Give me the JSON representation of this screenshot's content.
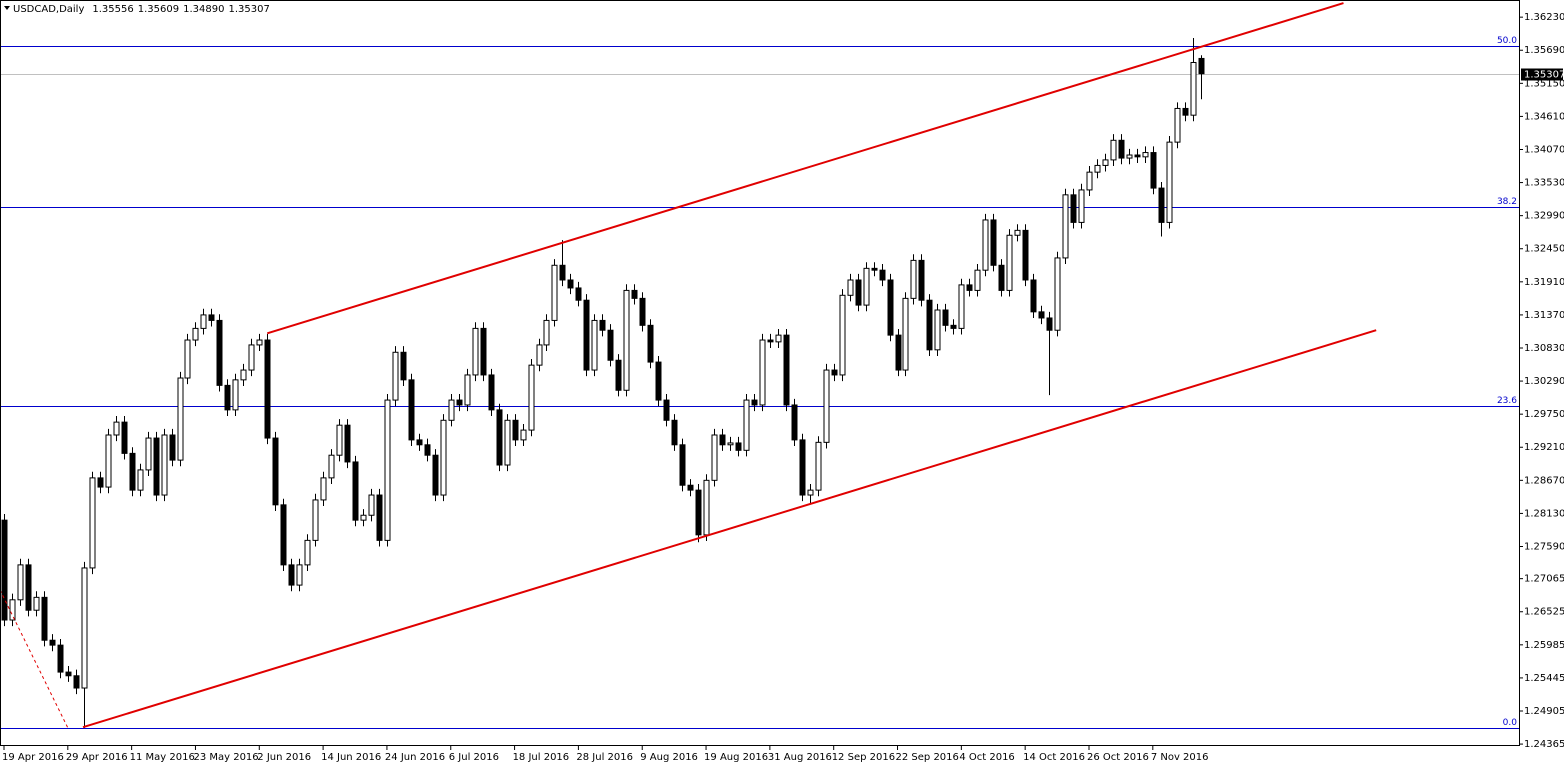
{
  "chart_data": {
    "type": "candlestick",
    "title": "USDCAD,Daily",
    "last_bar_labels": {
      "open": "1.35556",
      "high": "1.35609",
      "low": "1.34890",
      "close": "1.35307"
    },
    "categories": [
      "19 Apr 2016",
      null,
      null,
      null,
      null,
      null,
      null,
      null,
      "29 Apr 2016",
      null,
      null,
      null,
      null,
      null,
      null,
      null,
      "11 May 2016",
      null,
      null,
      null,
      null,
      null,
      null,
      null,
      "23 May 2016",
      null,
      null,
      null,
      null,
      null,
      null,
      null,
      "2 Jun 2016",
      null,
      null,
      null,
      null,
      null,
      null,
      null,
      "14 Jun 2016",
      null,
      null,
      null,
      null,
      null,
      null,
      null,
      "24 Jun 2016",
      null,
      null,
      null,
      null,
      null,
      null,
      null,
      "6 Jul 2016",
      null,
      null,
      null,
      null,
      null,
      null,
      null,
      "18 Jul 2016",
      null,
      null,
      null,
      null,
      null,
      null,
      null,
      "28 Jul 2016",
      null,
      null,
      null,
      null,
      null,
      null,
      null,
      "9 Aug 2016",
      null,
      null,
      null,
      null,
      null,
      null,
      null,
      "19 Aug 2016",
      null,
      null,
      null,
      null,
      null,
      null,
      null,
      "31 Aug 2016",
      null,
      null,
      null,
      null,
      null,
      null,
      null,
      "12 Sep 2016",
      null,
      null,
      null,
      null,
      null,
      null,
      null,
      "22 Sep 2016",
      null,
      null,
      null,
      null,
      null,
      null,
      null,
      "4 Oct 2016",
      null,
      null,
      null,
      null,
      null,
      null,
      null,
      "14 Oct 2016",
      null,
      null,
      null,
      null,
      null,
      null,
      null,
      "26 Oct 2016",
      null,
      null,
      null,
      null,
      null,
      null,
      null,
      "7 Nov 2016",
      null,
      null,
      null,
      null,
      null,
      null
    ],
    "open": [
      1.2802,
      1.2639,
      1.2672,
      1.2729,
      1.2655,
      1.2676,
      1.2606,
      1.2598,
      1.2554,
      1.2548,
      1.2528,
      1.2724,
      1.2871,
      1.2856,
      1.2941,
      1.2962,
      1.2911,
      1.2851,
      1.2884,
      1.2936,
      1.2843,
      1.2941,
      1.29,
      1.3034,
      1.3096,
      1.3115,
      1.3137,
      1.3128,
      1.3022,
      1.2982,
      1.3031,
      1.3047,
      1.3088,
      1.3096,
      1.2936,
      1.2827,
      1.2729,
      1.2696,
      1.2729,
      1.2769,
      1.2835,
      1.2871,
      1.2908,
      1.2957,
      1.2897,
      1.2802,
      1.281,
      1.2843,
      1.2769,
      1.2998,
      1.3076,
      1.3031,
      1.2933,
      1.2925,
      1.2908,
      1.2843,
      1.2965,
      1.2998,
      1.299,
      1.3039,
      1.3115,
      1.3039,
      1.2982,
      1.2892,
      1.2965,
      1.2933,
      1.2949,
      1.3055,
      1.3088,
      1.3128,
      1.3218,
      1.3194,
      1.3181,
      1.3161,
      1.3047,
      1.3128,
      1.3112,
      1.3063,
      1.3014,
      1.3177,
      1.3164,
      1.312,
      1.306,
      1.2998,
      1.2965,
      1.2925,
      1.2859,
      1.2851,
      1.2778,
      1.2867,
      1.2941,
      1.2925,
      1.2928,
      1.2916,
      1.2998,
      1.299,
      1.3096,
      1.3093,
      1.3104,
      1.299,
      1.2933,
      1.2843,
      1.2851,
      1.2929,
      1.3047,
      1.3039,
      1.3169,
      1.3194,
      1.3153,
      1.3213,
      1.321,
      1.3194,
      1.3104,
      1.3047,
      1.3164,
      1.3226,
      1.3161,
      1.308,
      1.3145,
      1.312,
      1.3115,
      1.3186,
      1.3177,
      1.321,
      1.3292,
      1.3218,
      1.3177,
      1.3267,
      1.3275,
      1.3194,
      1.3142,
      1.3132,
      1.3112,
      1.323,
      1.3333,
      1.3288,
      1.3341,
      1.337,
      1.3381,
      1.339,
      1.3422,
      1.3393,
      1.3398,
      1.3395,
      1.3402,
      1.3344,
      1.3288,
      1.3419,
      1.3474,
      1.3463,
      1.35556
    ],
    "high": [
      1.2812,
      1.2682,
      1.2739,
      1.2739,
      1.2686,
      1.2686,
      1.2616,
      1.2608,
      1.2564,
      1.2558,
      1.2734,
      1.2881,
      1.2881,
      1.2951,
      1.2972,
      1.2972,
      1.2921,
      1.2894,
      1.2946,
      1.2946,
      1.2951,
      1.2951,
      1.3044,
      1.3106,
      1.3125,
      1.3147,
      1.3147,
      1.3138,
      1.3032,
      1.3041,
      1.3057,
      1.3098,
      1.3106,
      1.3106,
      1.2946,
      1.2837,
      1.2739,
      1.2739,
      1.2779,
      1.2845,
      1.2881,
      1.2918,
      1.2967,
      1.2967,
      1.2907,
      1.282,
      1.2853,
      1.2853,
      1.3008,
      1.3086,
      1.3086,
      1.3041,
      1.2943,
      1.2935,
      1.2918,
      1.2975,
      1.3008,
      1.3008,
      1.3049,
      1.3125,
      1.3125,
      1.3049,
      1.2992,
      1.2975,
      1.2975,
      1.2959,
      1.3065,
      1.3098,
      1.3138,
      1.3228,
      1.3259,
      1.3204,
      1.3191,
      1.3171,
      1.3138,
      1.3138,
      1.3122,
      1.3073,
      1.3187,
      1.3187,
      1.3174,
      1.313,
      1.307,
      1.3008,
      1.2975,
      1.2935,
      1.2869,
      1.2861,
      1.2877,
      1.2951,
      1.2951,
      1.2938,
      1.2938,
      1.3008,
      1.3008,
      1.3106,
      1.3106,
      1.3114,
      1.3114,
      1.3,
      1.2943,
      1.2861,
      1.2939,
      1.3057,
      1.3057,
      1.3179,
      1.3204,
      1.3204,
      1.3223,
      1.3223,
      1.322,
      1.3204,
      1.3114,
      1.3174,
      1.3236,
      1.3236,
      1.3171,
      1.3155,
      1.3155,
      1.313,
      1.3196,
      1.3196,
      1.322,
      1.3302,
      1.3302,
      1.3228,
      1.3277,
      1.3285,
      1.3285,
      1.3204,
      1.3152,
      1.3142,
      1.324,
      1.3343,
      1.3343,
      1.3351,
      1.338,
      1.3391,
      1.34,
      1.3432,
      1.3432,
      1.3408,
      1.3408,
      1.3412,
      1.3412,
      1.3354,
      1.3429,
      1.3484,
      1.3484,
      1.3589,
      1.35609
    ],
    "low": [
      1.2629,
      1.2629,
      1.2662,
      1.2645,
      1.2645,
      1.2596,
      1.2588,
      1.2544,
      1.2538,
      1.2518,
      1.2463,
      1.2714,
      1.2846,
      1.2846,
      1.2931,
      1.2901,
      1.2841,
      1.2841,
      1.2874,
      1.2833,
      1.2833,
      1.289,
      1.289,
      1.3024,
      1.3086,
      1.3105,
      1.3118,
      1.3012,
      1.2972,
      1.2972,
      1.3021,
      1.3037,
      1.3078,
      1.2926,
      1.2817,
      1.2719,
      1.2686,
      1.2686,
      1.2719,
      1.2759,
      1.2825,
      1.2861,
      1.2898,
      1.2887,
      1.2792,
      1.2792,
      1.28,
      1.2759,
      1.2759,
      1.2988,
      1.3021,
      1.2923,
      1.2915,
      1.2898,
      1.2833,
      1.2833,
      1.2955,
      1.298,
      1.298,
      1.3029,
      1.3029,
      1.2972,
      1.2882,
      1.2882,
      1.2923,
      1.2923,
      1.2939,
      1.3045,
      1.3078,
      1.3118,
      1.3184,
      1.3171,
      1.3151,
      1.3037,
      1.3037,
      1.3102,
      1.3053,
      1.3004,
      1.3004,
      1.3154,
      1.311,
      1.305,
      1.2988,
      1.2955,
      1.2915,
      1.2849,
      1.2841,
      1.2766,
      1.2768,
      1.2857,
      1.2915,
      1.2915,
      1.2906,
      1.2906,
      1.298,
      1.298,
      1.3083,
      1.3083,
      1.298,
      1.2923,
      1.2833,
      1.283,
      1.2841,
      1.2919,
      1.3029,
      1.3029,
      1.3159,
      1.3143,
      1.3143,
      1.32,
      1.3184,
      1.3094,
      1.3037,
      1.3037,
      1.3154,
      1.3151,
      1.307,
      1.307,
      1.311,
      1.3105,
      1.3105,
      1.3167,
      1.3167,
      1.32,
      1.3208,
      1.3167,
      1.3167,
      1.3257,
      1.3184,
      1.3132,
      1.3122,
      1.3006,
      1.3102,
      1.322,
      1.3278,
      1.3278,
      1.3331,
      1.336,
      1.3371,
      1.338,
      1.3383,
      1.3383,
      1.3385,
      1.3385,
      1.3334,
      1.3265,
      1.3278,
      1.3409,
      1.3453,
      1.3453,
      1.3489
    ],
    "close": [
      1.2639,
      1.2672,
      1.2729,
      1.2655,
      1.2676,
      1.2606,
      1.2598,
      1.2554,
      1.2548,
      1.2528,
      1.2724,
      1.2871,
      1.2856,
      1.2941,
      1.2962,
      1.2911,
      1.2851,
      1.2884,
      1.2936,
      1.2843,
      1.2941,
      1.29,
      1.3034,
      1.3096,
      1.3115,
      1.3137,
      1.3128,
      1.3022,
      1.2982,
      1.3031,
      1.3047,
      1.3088,
      1.3096,
      1.2936,
      1.2827,
      1.2729,
      1.2696,
      1.2729,
      1.2769,
      1.2835,
      1.2871,
      1.2908,
      1.2957,
      1.2897,
      1.2802,
      1.281,
      1.2843,
      1.2769,
      1.2998,
      1.3076,
      1.3031,
      1.2933,
      1.2925,
      1.2908,
      1.2843,
      1.2965,
      1.2998,
      1.299,
      1.3039,
      1.3115,
      1.3039,
      1.2982,
      1.2892,
      1.2965,
      1.2933,
      1.2949,
      1.3055,
      1.3088,
      1.3128,
      1.3218,
      1.3194,
      1.3181,
      1.3161,
      1.3047,
      1.3128,
      1.3112,
      1.3063,
      1.3014,
      1.3177,
      1.3164,
      1.312,
      1.306,
      1.2998,
      1.2965,
      1.2925,
      1.2859,
      1.2851,
      1.2778,
      1.2867,
      1.2941,
      1.2925,
      1.2928,
      1.2916,
      1.2998,
      1.299,
      1.3096,
      1.3093,
      1.3104,
      1.299,
      1.2933,
      1.2843,
      1.2851,
      1.2929,
      1.3047,
      1.3039,
      1.3169,
      1.3194,
      1.3153,
      1.3213,
      1.321,
      1.3194,
      1.3104,
      1.3047,
      1.3164,
      1.3226,
      1.3161,
      1.308,
      1.3145,
      1.312,
      1.3115,
      1.3186,
      1.3177,
      1.321,
      1.3292,
      1.3218,
      1.3177,
      1.3267,
      1.3275,
      1.3194,
      1.3142,
      1.3132,
      1.3112,
      1.323,
      1.3333,
      1.3288,
      1.3341,
      1.337,
      1.3381,
      1.339,
      1.3422,
      1.3393,
      1.3398,
      1.3395,
      1.3402,
      1.3344,
      1.3288,
      1.3419,
      1.3474,
      1.3463,
      1.3549,
      1.35307
    ],
    "up_color": "#ffffff",
    "down_color": "#000000",
    "outline_color": "#000000",
    "xlim": [
      -0.5,
      189.9
    ],
    "ylim": [
      1.2435,
      1.3651
    ],
    "yticks": [
      {
        "value": 1.3623,
        "label": "1.36230"
      },
      {
        "value": 1.3569,
        "label": "1.35690"
      },
      {
        "value": 1.3515,
        "label": "1.35150"
      },
      {
        "value": 1.3461,
        "label": "1.34610"
      },
      {
        "value": 1.3407,
        "label": "1.34070"
      },
      {
        "value": 1.3353,
        "label": "1.33530"
      },
      {
        "value": 1.3299,
        "label": "1.32990"
      },
      {
        "value": 1.3245,
        "label": "1.32450"
      },
      {
        "value": 1.3191,
        "label": "1.31910"
      },
      {
        "value": 1.3137,
        "label": "1.31370"
      },
      {
        "value": 1.3083,
        "label": "1.30830"
      },
      {
        "value": 1.3029,
        "label": "1.30290"
      },
      {
        "value": 1.2975,
        "label": "1.29750"
      },
      {
        "value": 1.2921,
        "label": "1.29210"
      },
      {
        "value": 1.2867,
        "label": "1.28670"
      },
      {
        "value": 1.2813,
        "label": "1.28130"
      },
      {
        "value": 1.2759,
        "label": "1.27590"
      },
      {
        "value": 1.27065,
        "label": "1.27065"
      },
      {
        "value": 1.26525,
        "label": "1.26525"
      },
      {
        "value": 1.25985,
        "label": "1.25985"
      },
      {
        "value": 1.25445,
        "label": "1.25445"
      },
      {
        "value": 1.24905,
        "label": "1.24905"
      },
      {
        "value": 1.24365,
        "label": "1.24365"
      }
    ],
    "grid": false,
    "fibonacci": {
      "color": "#0000cd",
      "levels": [
        {
          "value": 0,
          "label": "0.0"
        },
        {
          "value": 23.6,
          "label": "23.6"
        },
        {
          "value": 38.2,
          "label": "38.2"
        },
        {
          "value": 50,
          "label": "50.0"
        }
      ],
      "prices": [
        1.2463,
        1.2988,
        1.3313,
        1.3576
      ]
    },
    "trendlines": [
      {
        "color": "#e00000",
        "dashed": false,
        "x": [
          33,
          167.9
        ],
        "y": [
          1.3107,
          1.3646
        ]
      },
      {
        "color": "#e00000",
        "dashed": false,
        "x": [
          9.9,
          172
        ],
        "y": [
          1.2464,
          1.3112
        ]
      },
      {
        "color": "#e00000",
        "dashed": true,
        "x": [
          -0.5,
          8
        ],
        "y": [
          1.2688,
          1.2463
        ]
      }
    ],
    "price_line_color": "#c0c0c0"
  }
}
